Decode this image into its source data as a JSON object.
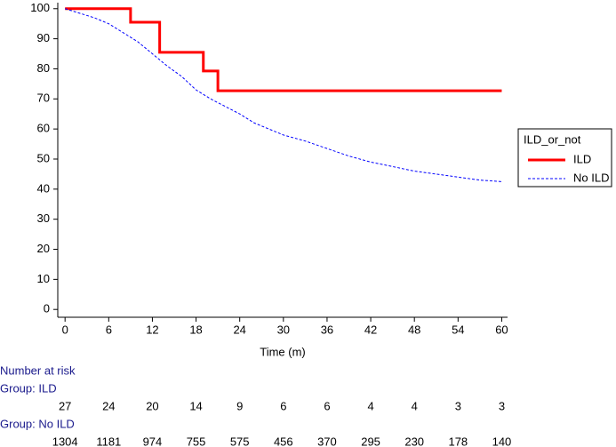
{
  "chart_data": {
    "type": "line",
    "x_label": "Time (m)",
    "xlim": [
      -1,
      60.8
    ],
    "ylim": [
      -2.6,
      102
    ],
    "xticks": [
      0,
      6,
      12,
      18,
      24,
      30,
      36,
      42,
      48,
      54,
      60
    ],
    "yticks": [
      0,
      10,
      20,
      30,
      40,
      50,
      60,
      70,
      80,
      90,
      100
    ],
    "legend_title": "ILD_or_not",
    "legend_position": "right",
    "series": [
      {
        "name": "ILD",
        "color": "#ff0000",
        "style": "solid",
        "x": [
          0,
          9,
          9,
          13,
          13,
          19,
          19,
          21,
          21,
          60
        ],
        "values": [
          100,
          100,
          95.5,
          95.5,
          85.5,
          85.5,
          79.3,
          79.3,
          72.7,
          72.7
        ]
      },
      {
        "name": "No ILD",
        "color": "#0000ff",
        "style": "dashed",
        "x": [
          0,
          2,
          4,
          6,
          8,
          10,
          12,
          14,
          16,
          18,
          20,
          22,
          24,
          26,
          28,
          30,
          33,
          36,
          39,
          42,
          45,
          48,
          51,
          54,
          57,
          60
        ],
        "values": [
          100,
          98.5,
          97,
          95,
          92,
          89,
          85,
          81,
          77.5,
          73,
          70,
          67.5,
          65,
          62,
          60,
          58,
          56,
          53.5,
          51,
          49,
          47.5,
          46,
          45,
          44,
          43,
          42.5
        ]
      }
    ],
    "risk_table": {
      "title": "Number at risk",
      "groups": [
        {
          "label": "Group: ILD",
          "counts": [
            27,
            24,
            20,
            14,
            9,
            6,
            6,
            4,
            4,
            3,
            3
          ]
        },
        {
          "label": "Group: No ILD",
          "counts": [
            1304,
            1181,
            974,
            755,
            575,
            456,
            370,
            295,
            230,
            178,
            140
          ]
        }
      ]
    }
  }
}
